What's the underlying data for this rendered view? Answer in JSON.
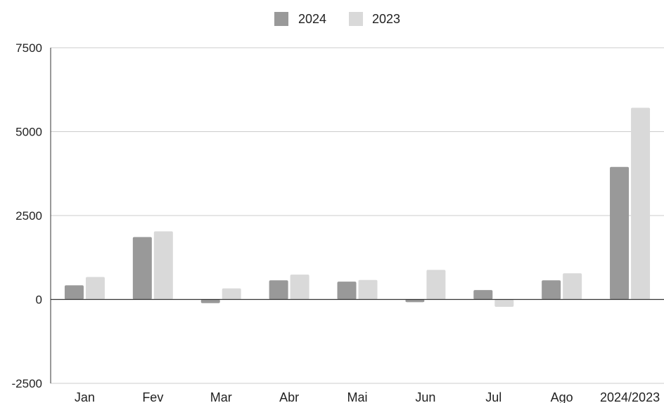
{
  "chart_data": {
    "type": "bar",
    "title": "",
    "xlabel": "",
    "ylabel": "",
    "categories": [
      "Jan",
      "Fev",
      "Mar",
      "Abr",
      "Mai",
      "Jun",
      "Jul",
      "Ago",
      "2024/2023"
    ],
    "series": [
      {
        "name": "2024",
        "color": "#999999",
        "values": [
          420,
          1860,
          -110,
          570,
          530,
          -80,
          280,
          570,
          3950
        ]
      },
      {
        "name": "2023",
        "color": "#d9d9d9",
        "values": [
          670,
          2030,
          330,
          740,
          580,
          880,
          -220,
          780,
          5710
        ]
      }
    ],
    "ylim": [
      -2500,
      7500
    ],
    "yticks": [
      "7500",
      "5000",
      "2500",
      "0",
      "-2500"
    ],
    "grid": true,
    "legend": "top-center"
  }
}
